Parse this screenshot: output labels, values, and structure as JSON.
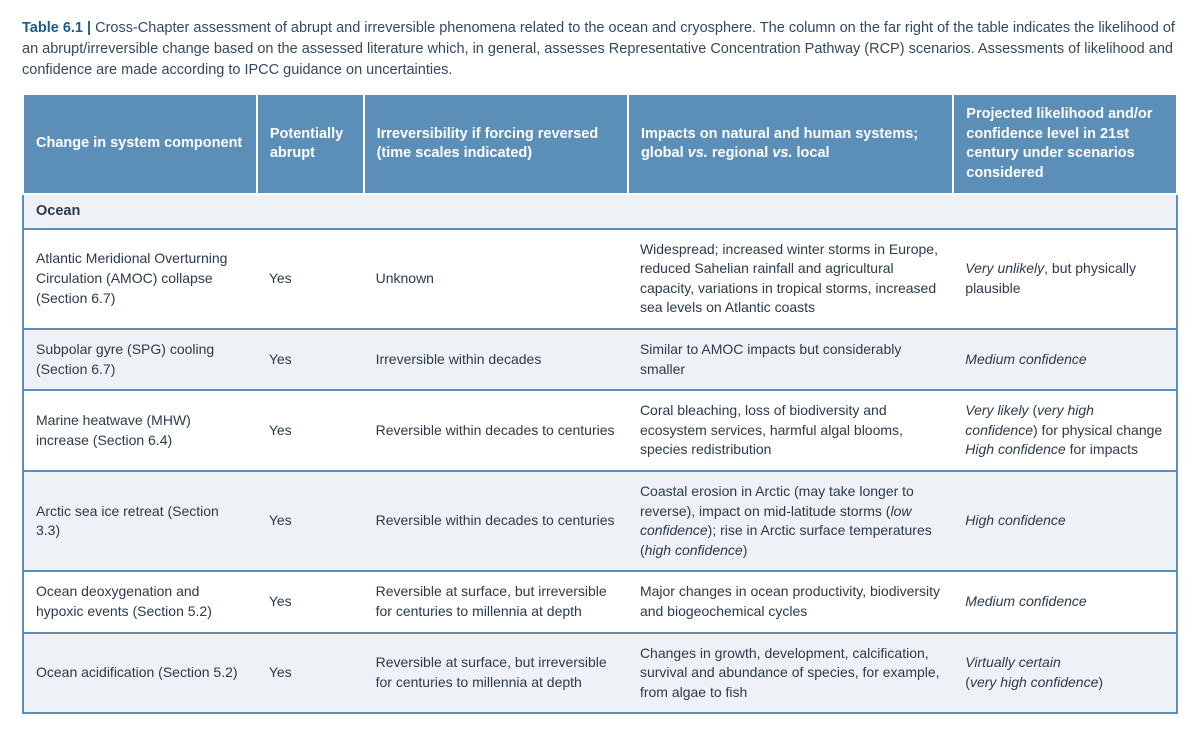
{
  "caption": {
    "label": "Table 6.1 |",
    "text": " Cross-Chapter assessment of abrupt and irreversible phenomena related to the ocean and cryosphere. The column on the far right of the table indicates the likelihood of an abrupt/irreversible change based on the assessed literature which, in general, assesses Representative Concentration Pathway (RCP) scenarios. Assessments of likelihood and confidence are made according to IPCC guidance on uncertainties."
  },
  "headers": {
    "c1": "Change in system component",
    "c2": "Potentially abrupt",
    "c3": "Irreversibility if forcing reversed (time scales indicated)",
    "c4_a": "Impacts on natural and human systems; global ",
    "c4_b": "vs.",
    "c4_c": " regional ",
    "c4_d": "vs.",
    "c4_e": " local",
    "c5": "Projected likelihood and/or confidence level in 21st century under scenarios considered"
  },
  "section": "Ocean",
  "rows": [
    {
      "component": "Atlantic Meridional Overturning Circulation (AMOC) collapse (Section 6.7)",
      "abrupt": "Yes",
      "irrev": "Unknown",
      "impacts_html": "Widespread; increased winter storms in Europe, reduced Sahelian rainfall and agricultural capacity, variations in tropical storms, increased sea levels on Atlantic coasts",
      "likelihood_html": "<i>Very unlikely</i>, but physically plausible"
    },
    {
      "component": "Subpolar gyre (SPG) cooling (Section 6.7)",
      "abrupt": "Yes",
      "irrev": "Irreversible within decades",
      "impacts_html": "Similar to AMOC impacts but considerably smaller",
      "likelihood_html": "<i>Medium confidence</i>"
    },
    {
      "component": "Marine heatwave (MHW) increase (Section 6.4)",
      "abrupt": "Yes",
      "irrev": "Reversible within decades to centuries",
      "impacts_html": "Coral bleaching, loss of biodiversity and ecosystem services, harmful algal blooms, species redistribution",
      "likelihood_html": "<i>Very likely</i> (<i>very high confidence</i>) for physical change<br><i>High confidence</i> for impacts"
    },
    {
      "component": "Arctic sea ice retreat (Section 3.3)",
      "abrupt": "Yes",
      "irrev": "Reversible within decades to centuries",
      "impacts_html": "Coastal erosion in Arctic (may take longer to reverse), impact on mid-latitude storms (<i>low confidence</i>); rise in Arctic surface temperatures (<i>high confidence</i>)",
      "likelihood_html": "<i>High confidence</i>"
    },
    {
      "component": "Ocean deoxygenation and hypoxic events (Section 5.2)",
      "abrupt": "Yes",
      "irrev": "Reversible at surface, but irreversible for centuries to millennia at depth",
      "impacts_html": "Major changes in ocean productivity, biodiversity and biogeochemical cycles",
      "likelihood_html": "<i>Medium confidence</i>"
    },
    {
      "component": "Ocean acidification (Section 5.2)",
      "abrupt": "Yes",
      "irrev": "Reversible at surface, but irreversible for centuries to millennia at depth",
      "impacts_html": "Changes in growth, development, calcification, survival and abundance of species, for example, from algae to fish",
      "likelihood_html": "<i>Virtually certain</i><br>(<i>very high confidence</i>)"
    }
  ]
}
